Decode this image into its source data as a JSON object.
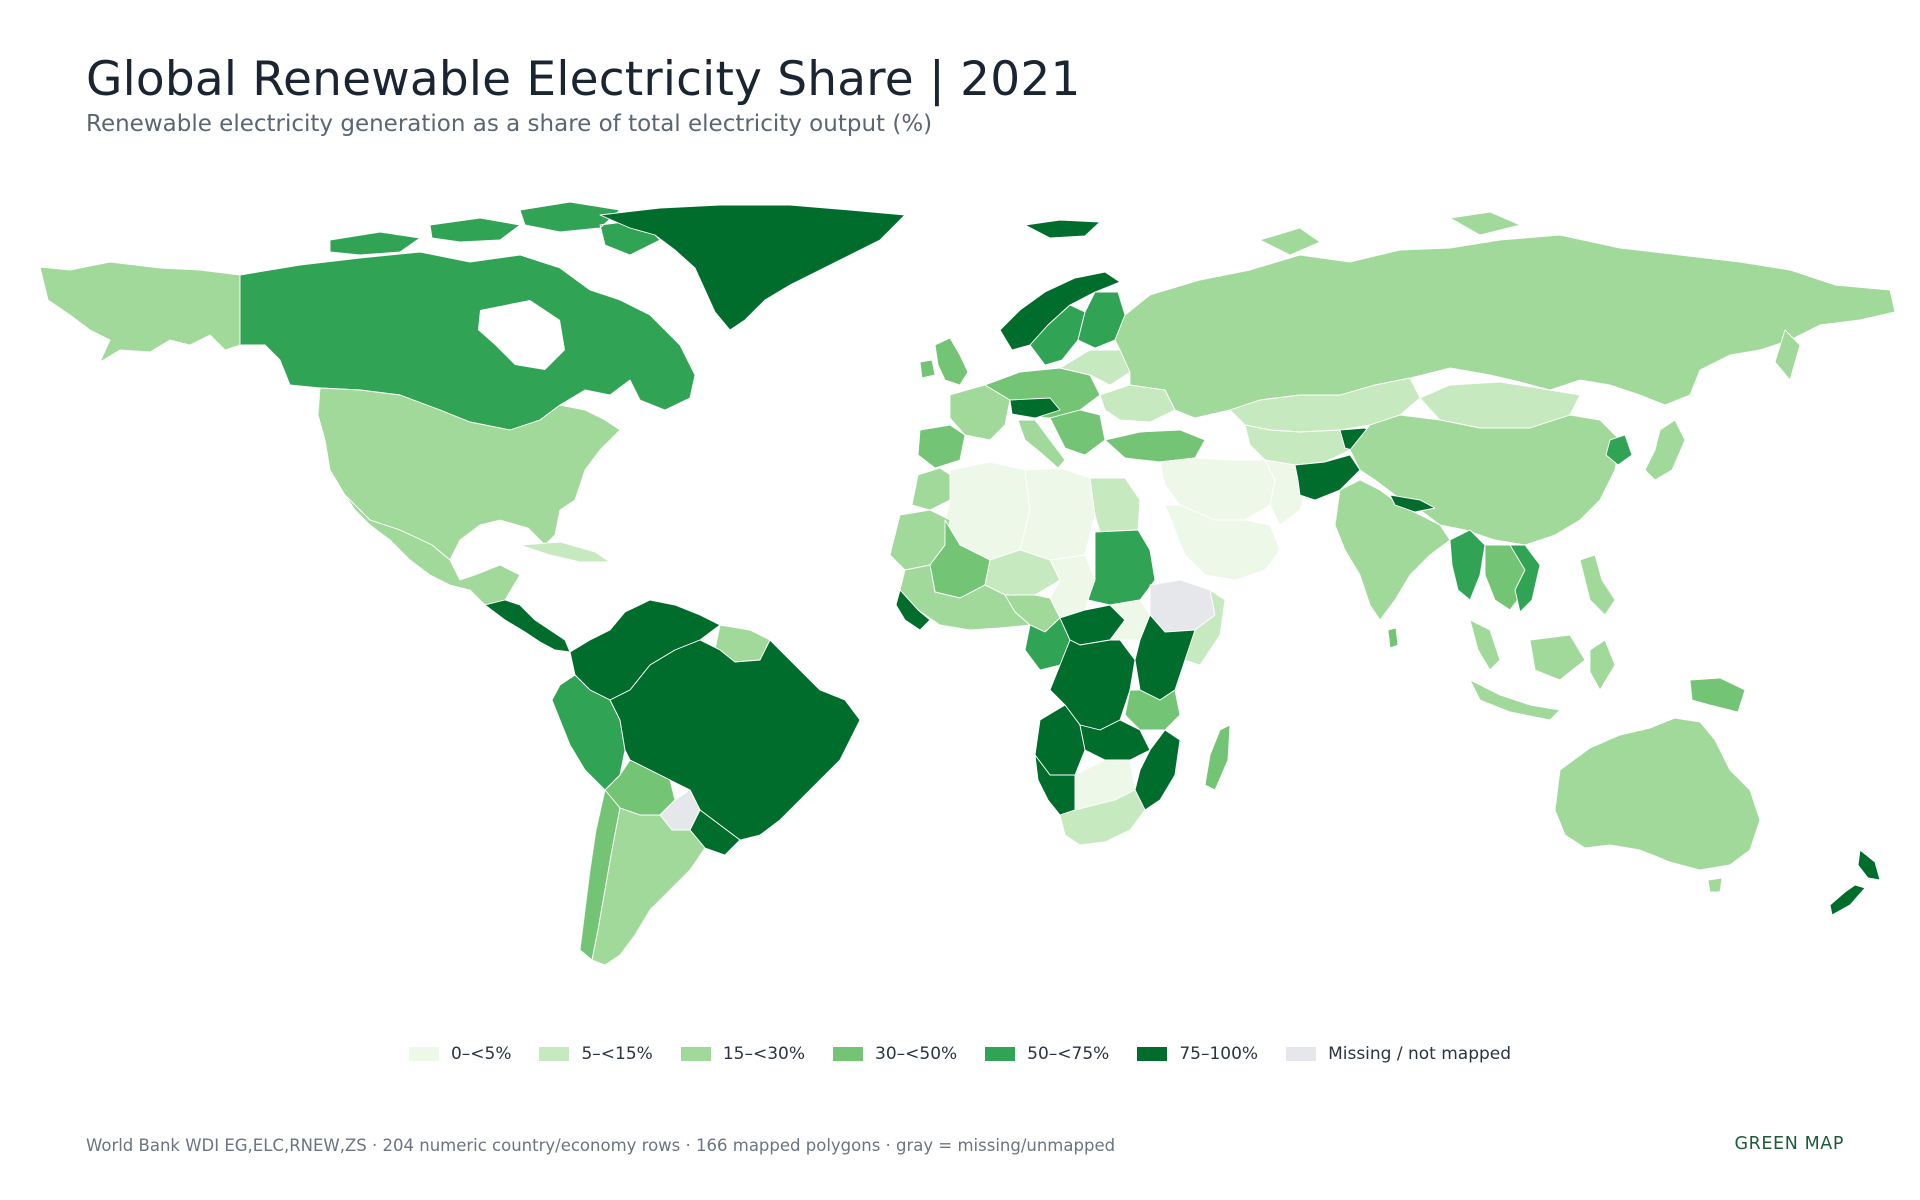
{
  "header": {
    "title": "Global Renewable Electricity Share | 2021",
    "subtitle": "Renewable electricity generation as a share of total electricity output (%)"
  },
  "legend": {
    "items": [
      {
        "label": "0–<5%",
        "color": "#edf8e9"
      },
      {
        "label": "5–<15%",
        "color": "#c7e9c0"
      },
      {
        "label": "15–<30%",
        "color": "#a1d99b"
      },
      {
        "label": "30–<50%",
        "color": "#74c476"
      },
      {
        "label": "50–<75%",
        "color": "#31a354"
      },
      {
        "label": "75–100%",
        "color": "#006d2c"
      },
      {
        "label": "Missing / not mapped",
        "color": "#e5e7ea"
      }
    ]
  },
  "footer": {
    "source": "World Bank WDI EG,ELC,RNEW,ZS · 204 numeric country/economy rows · 166 mapped polygons · gray = missing/unmapped",
    "brand": "GREEN MAP"
  },
  "map_data": {
    "type": "choropleth",
    "projection": "equirectangular",
    "regions": [
      {
        "name": "Canada",
        "class": "50–<75%"
      },
      {
        "name": "Greenland",
        "class": "75–100%"
      },
      {
        "name": "United States",
        "class": "15–<30%"
      },
      {
        "name": "Mexico",
        "class": "15–<30%"
      },
      {
        "name": "Brazil",
        "class": "75–100%"
      },
      {
        "name": "Argentina",
        "class": "15–<30%"
      },
      {
        "name": "Peru",
        "class": "50–<75%"
      },
      {
        "name": "Colombia",
        "class": "75–100%"
      },
      {
        "name": "Venezuela",
        "class": "75–100%"
      },
      {
        "name": "Russia",
        "class": "15–<30%"
      },
      {
        "name": "China",
        "class": "15–<30%"
      },
      {
        "name": "India",
        "class": "15–<30%"
      },
      {
        "name": "Australia",
        "class": "15–<30%"
      },
      {
        "name": "New Zealand",
        "class": "75–100%"
      },
      {
        "name": "Sudan",
        "class": "50–<75%"
      },
      {
        "name": "Ethiopia",
        "class": "Missing / not mapped"
      },
      {
        "name": "DR Congo",
        "class": "75–100%"
      },
      {
        "name": "Angola",
        "class": "75–100%"
      },
      {
        "name": "South Africa",
        "class": "5–<15%"
      },
      {
        "name": "Madagascar",
        "class": "30–<50%"
      },
      {
        "name": "Norway",
        "class": "75–100%"
      },
      {
        "name": "Afghanistan",
        "class": "75–100%"
      },
      {
        "name": "Saudi Arabia",
        "class": "0–<5%"
      },
      {
        "name": "Algeria",
        "class": "0–<5%"
      },
      {
        "name": "Bolivia",
        "class": "30–<50%"
      },
      {
        "name": "Paraguay",
        "class": "Missing / not mapped"
      }
    ]
  }
}
